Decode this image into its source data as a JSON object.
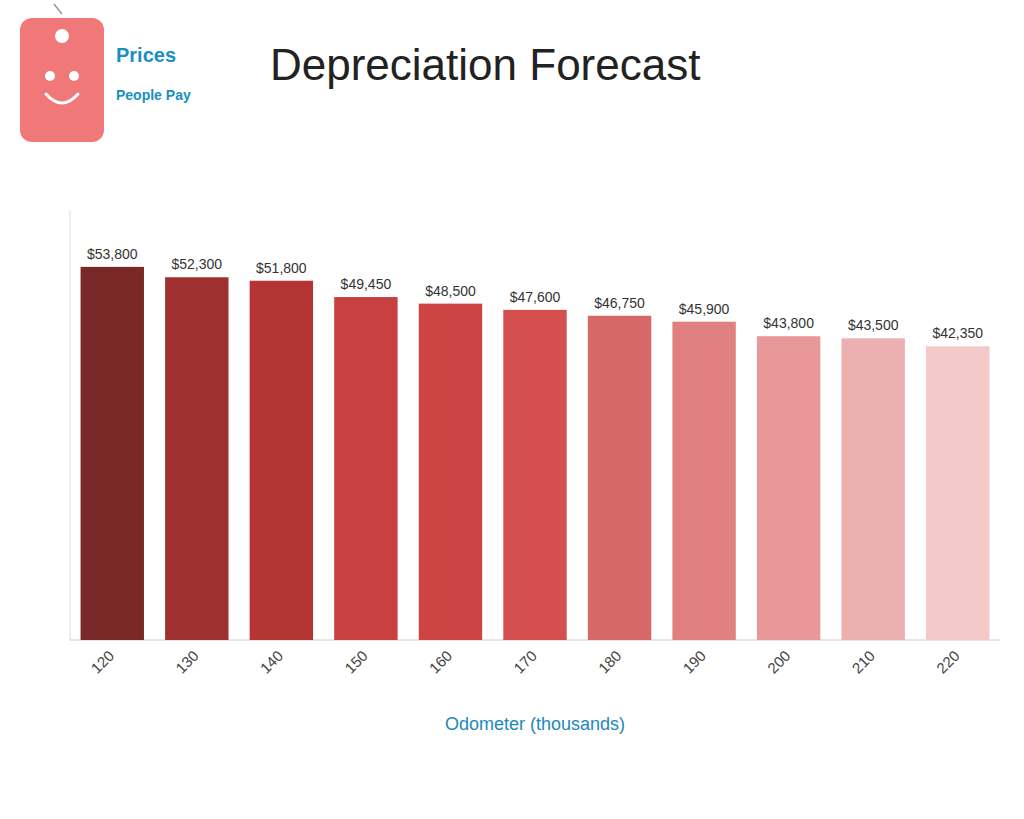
{
  "chart_data": {
    "type": "bar",
    "title": "Depreciation Forecast",
    "xlabel": "Odometer (thousands)",
    "categories": [
      "120",
      "130",
      "140",
      "150",
      "160",
      "170",
      "180",
      "190",
      "200",
      "210",
      "220"
    ],
    "values": [
      53800,
      52300,
      51800,
      49450,
      48500,
      47600,
      46750,
      45900,
      43800,
      43500,
      42350
    ],
    "value_labels": [
      "$53,800",
      "$52,300",
      "$51,800",
      "$49,450",
      "$48,500",
      "$47,600",
      "$46,750",
      "$45,900",
      "$43,800",
      "$43,500",
      "$42,350"
    ],
    "data_labels": true,
    "colors": [
      "#7A2828",
      "#A03030",
      "#B53535",
      "#C84040",
      "#CC4444",
      "#D45050",
      "#D86868",
      "#E08080",
      "#E89898",
      "#EDB0B0",
      "#F2C8C8"
    ],
    "ylim": [
      0,
      62000
    ],
    "tick_labels": "x",
    "grid": false,
    "annotations": [
      "Prices",
      "People Pay"
    ]
  }
}
